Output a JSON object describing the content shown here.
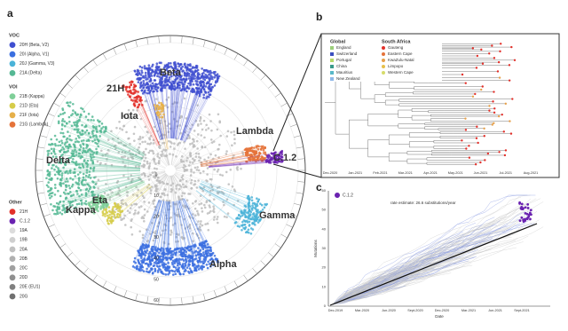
{
  "panel_a": {
    "label": "a",
    "legend": [
      {
        "title": "VOC",
        "items": [
          {
            "label": "20H (Beta, V2)",
            "color": "#3f4fd0"
          },
          {
            "label": "20I (Alpha, V1)",
            "color": "#3b6fe0"
          },
          {
            "label": "20J (Gamma, V3)",
            "color": "#4ab3d8"
          },
          {
            "label": "21A (Delta)",
            "color": "#55b894"
          }
        ]
      },
      {
        "title": "VOI",
        "items": [
          {
            "label": "21B (Kappa)",
            "color": "#7fcf98"
          },
          {
            "label": "21D (Eta)",
            "color": "#d6cc4a"
          },
          {
            "label": "21F (Iota)",
            "color": "#e6b04a"
          },
          {
            "label": "21G (Lambda)",
            "color": "#e5733a"
          }
        ]
      },
      {
        "title": "Other",
        "items": [
          {
            "label": "21H",
            "color": "#e2302a"
          },
          {
            "label": "C.1.2",
            "color": "#6a22b0"
          },
          {
            "label": "19A",
            "color": "#dcdcdc"
          },
          {
            "label": "19B",
            "color": "#cfcfcf"
          },
          {
            "label": "20A",
            "color": "#c0c0c0"
          },
          {
            "label": "20B",
            "color": "#b0b0b0"
          },
          {
            "label": "20C",
            "color": "#a0a0a0"
          },
          {
            "label": "20D",
            "color": "#909090"
          },
          {
            "label": "20E (EU1)",
            "color": "#808080"
          },
          {
            "label": "20G",
            "color": "#707070"
          }
        ]
      }
    ],
    "clade_labels": [
      {
        "text": "Beta",
        "color": "#3f4fd0"
      },
      {
        "text": "21H",
        "color": "#e2302a"
      },
      {
        "text": "Iota",
        "color": "#e6b04a"
      },
      {
        "text": "Lambda",
        "color": "#e5733a"
      },
      {
        "text": "C.1.2",
        "color": "#6a22b0"
      },
      {
        "text": "Delta",
        "color": "#55b894"
      },
      {
        "text": "Kappa",
        "color": "#7fcf98"
      },
      {
        "text": "Eta",
        "color": "#d6cc4a"
      },
      {
        "text": "Gamma",
        "color": "#4ab3d8"
      },
      {
        "text": "Alpha",
        "color": "#3b6fe0"
      }
    ],
    "radial_ticks": [
      "0",
      "10",
      "20",
      "30",
      "40",
      "50",
      "60"
    ]
  },
  "panel_b": {
    "label": "b",
    "legend": [
      {
        "title": "Global",
        "items": [
          {
            "label": "England",
            "color": "#9ccf7a"
          },
          {
            "label": "Switzerland",
            "color": "#3b4fc0"
          },
          {
            "label": "Portugal",
            "color": "#b7d96a"
          },
          {
            "label": "China",
            "color": "#3a9a8a"
          },
          {
            "label": "Mauritius",
            "color": "#58b8c8"
          },
          {
            "label": "New Zealand",
            "color": "#8fb8e8"
          }
        ]
      },
      {
        "title": "South Africa",
        "items": [
          {
            "label": "Gauteng",
            "color": "#e2302a"
          },
          {
            "label": "Eastern Cape",
            "color": "#e5733a"
          },
          {
            "label": "KwaZulu-Natal",
            "color": "#e6a04a"
          },
          {
            "label": "Limpopo",
            "color": "#e6c04a"
          },
          {
            "label": "Western Cape",
            "color": "#d6dc6a"
          }
        ]
      }
    ],
    "x_ticks": [
      "Dec-2020",
      "Jan-2021",
      "Feb-2021",
      "Mar-2021",
      "Apr-2021",
      "May-2021",
      "Jun-2021",
      "Jul-2021",
      "Aug-2021"
    ]
  },
  "panel_c": {
    "label": "c",
    "legend": "C.1.2",
    "annotation": "rate estimate: 26.6 substitutions/year",
    "y_label": "Mutations",
    "x_label": "Date",
    "y_ticks": [
      "0",
      "10",
      "20",
      "30",
      "40",
      "50",
      "60"
    ],
    "x_ticks": [
      "Dec-2019",
      "Mar-2020",
      "Jun-2020",
      "Sept-2020",
      "Dec-2020",
      "Mar-2021",
      "Jun-2021",
      "Sept-2021"
    ]
  }
}
